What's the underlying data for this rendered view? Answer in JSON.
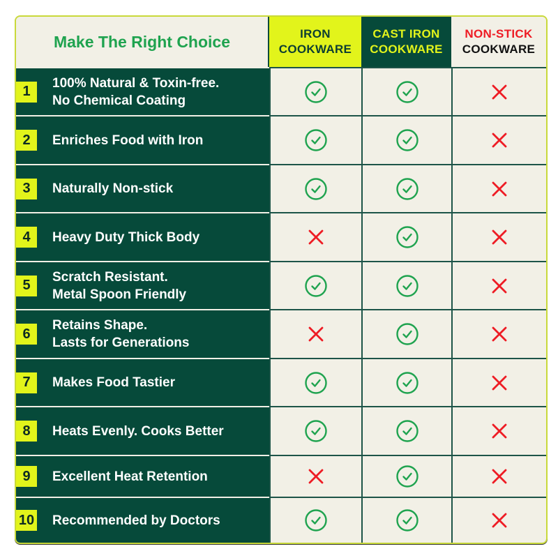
{
  "title": "Make The Right Choice",
  "columns": [
    {
      "line1": "IRON",
      "line2": "COOKWARE"
    },
    {
      "line1": "CAST IRON",
      "line2": "COOKWARE"
    },
    {
      "line1": "NON-STICK",
      "line2": "COOKWARE"
    }
  ],
  "colors": {
    "dark_green": "#064a3a",
    "lime": "#e2f41b",
    "check_green": "#1fa34f",
    "cross_red": "#ee1c24",
    "cream": "#f2f0e6"
  },
  "rows": [
    {
      "num": "1",
      "line1": "100% Natural & Toxin-free.",
      "line2": "No Chemical Coating",
      "values": [
        "check",
        "check",
        "cross"
      ]
    },
    {
      "num": "2",
      "line1": "Enriches Food with Iron",
      "line2": "",
      "values": [
        "check",
        "check",
        "cross"
      ]
    },
    {
      "num": "3",
      "line1": "Naturally Non-stick",
      "line2": "",
      "values": [
        "check",
        "check",
        "cross"
      ]
    },
    {
      "num": "4",
      "line1": "Heavy Duty Thick Body",
      "line2": "",
      "values": [
        "cross",
        "check",
        "cross"
      ]
    },
    {
      "num": "5",
      "line1": "Scratch Resistant.",
      "line2": "Metal Spoon Friendly",
      "values": [
        "check",
        "check",
        "cross"
      ]
    },
    {
      "num": "6",
      "line1": "Retains Shape.",
      "line2": "Lasts for Generations",
      "values": [
        "cross",
        "check",
        "cross"
      ]
    },
    {
      "num": "7",
      "line1": "Makes Food Tastier",
      "line2": "",
      "values": [
        "check",
        "check",
        "cross"
      ]
    },
    {
      "num": "8",
      "line1": "Heats Evenly. Cooks Better",
      "line2": "",
      "values": [
        "check",
        "check",
        "cross"
      ]
    },
    {
      "num": "9",
      "line1": "Excellent Heat Retention",
      "line2": "",
      "values": [
        "cross",
        "check",
        "cross"
      ]
    },
    {
      "num": "10",
      "line1": "Recommended by Doctors",
      "line2": "",
      "values": [
        "check",
        "check",
        "cross"
      ]
    }
  ]
}
